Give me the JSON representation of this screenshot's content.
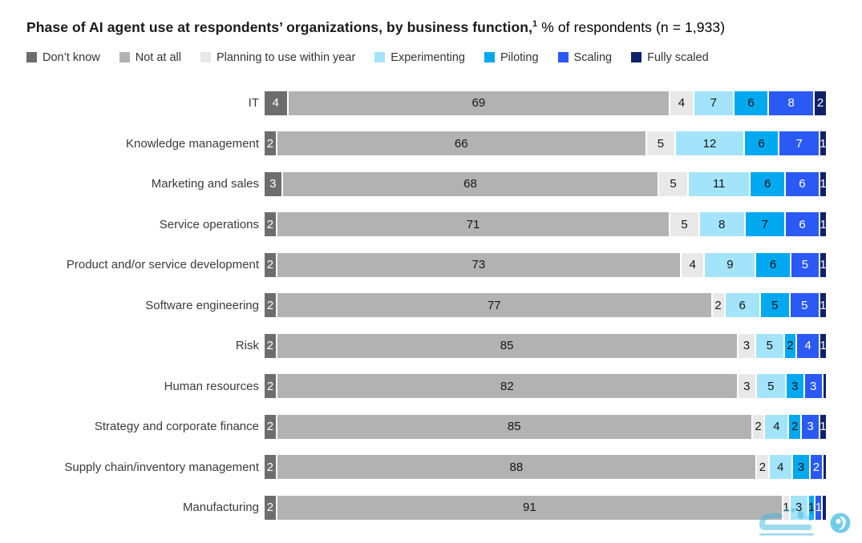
{
  "title": {
    "bold": "Phase of AI agent use at respondents’ organizations, by business function,",
    "superscript": "1",
    "regular": " % of respondents (n = 1,933)"
  },
  "chart_data": {
    "type": "bar",
    "orientation": "horizontal",
    "stacked": true,
    "value_unit": "% of respondents",
    "sample_label": "n = 1,933",
    "xlim": [
      0,
      100
    ],
    "legend_position": "top",
    "value_labels": "inside",
    "label_min_value": 1,
    "categories": [
      "IT",
      "Knowledge management",
      "Marketing and sales",
      "Service operations",
      "Product and/or service development",
      "Software engineering",
      "Risk",
      "Human resources",
      "Strategy and corporate finance",
      "Supply chain/inventory management",
      "Manufacturing"
    ],
    "series": [
      {
        "name": "Don’t know",
        "color": "#6d6d6d",
        "label_color": "#ffffff",
        "values": [
          4,
          2,
          3,
          2,
          2,
          2,
          2,
          2,
          2,
          2,
          2
        ]
      },
      {
        "name": "Not at all",
        "color": "#b2b2b2",
        "label_color": "#151515",
        "values": [
          69,
          66,
          68,
          71,
          73,
          77,
          85,
          82,
          85,
          88,
          91
        ]
      },
      {
        "name": "Planning to use within year",
        "color": "#e8e8e8",
        "label_color": "#151515",
        "values": [
          4,
          5,
          5,
          5,
          4,
          2,
          3,
          3,
          2,
          2,
          1
        ]
      },
      {
        "name": "Experimenting",
        "color": "#a4e4fa",
        "label_color": "#151515",
        "values": [
          7,
          12,
          11,
          8,
          9,
          6,
          5,
          5,
          4,
          4,
          3
        ]
      },
      {
        "name": "Piloting",
        "color": "#00a8f0",
        "label_color": "#151515",
        "values": [
          6,
          6,
          6,
          7,
          6,
          5,
          2,
          3,
          2,
          3,
          1
        ]
      },
      {
        "name": "Scaling",
        "color": "#2b59f5",
        "label_color": "#ffffff",
        "values": [
          8,
          7,
          6,
          6,
          5,
          5,
          4,
          3,
          3,
          2,
          1
        ]
      },
      {
        "name": "Fully scaled",
        "color": "#0f2167",
        "label_color": "#ffffff",
        "values": [
          2,
          1,
          1,
          1,
          1,
          1,
          1,
          0.5,
          1,
          0.5,
          0.5
        ]
      }
    ]
  },
  "watermark": {
    "color": "#45b6dc"
  }
}
